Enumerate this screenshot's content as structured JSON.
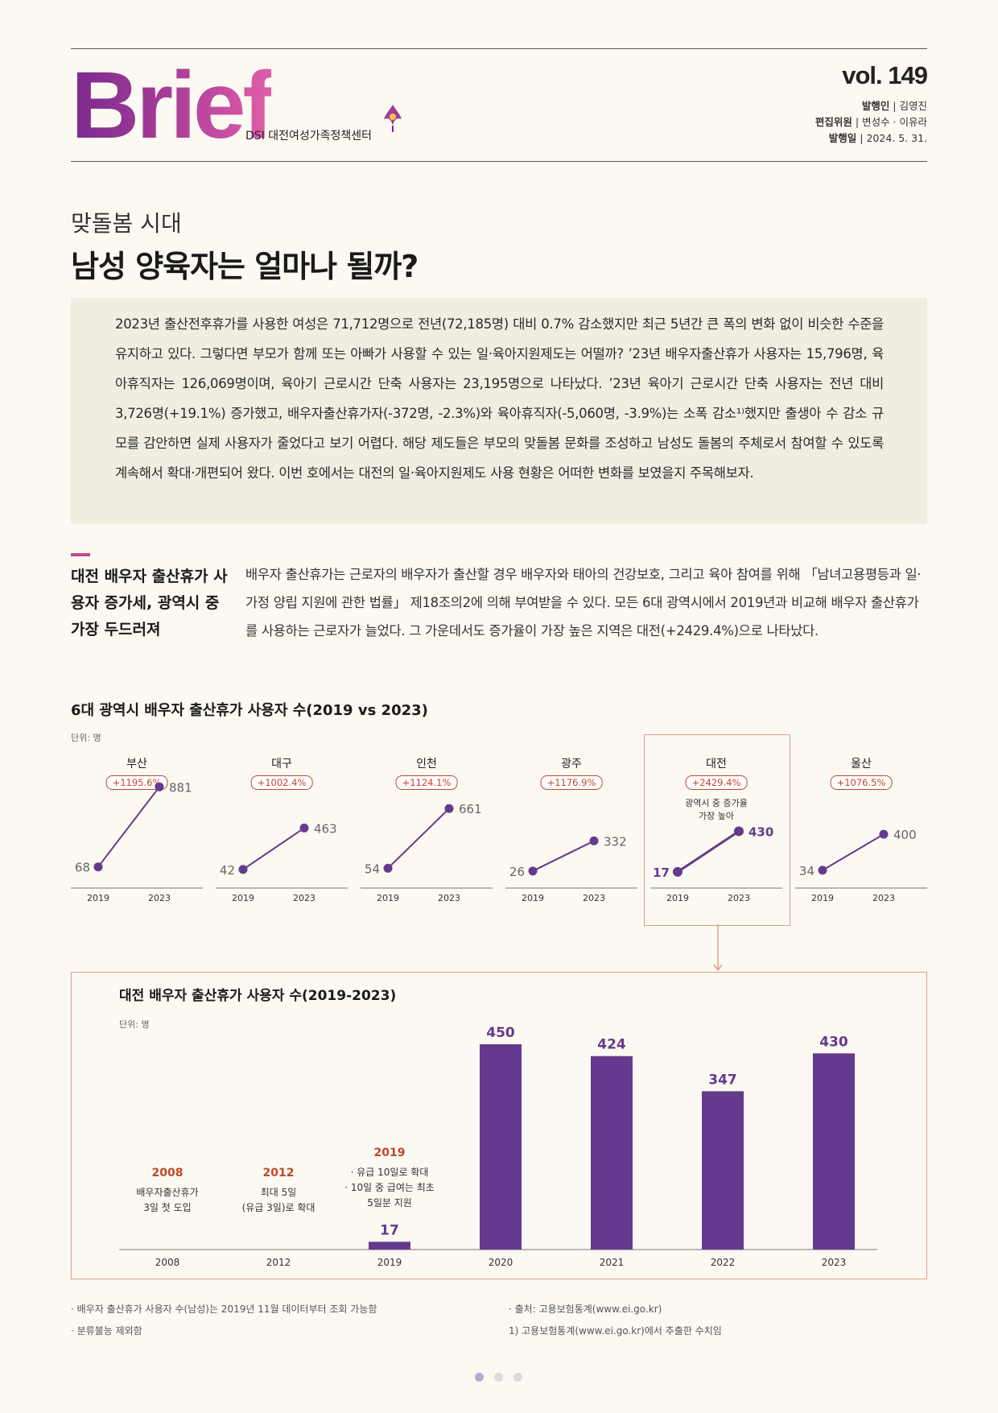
{
  "header": {
    "logo": "Brief",
    "org": "DSI 대전여성가족정책센터",
    "vol": "vol. 149",
    "publisher_label": "발행인",
    "publisher": " | 김영진",
    "editors_label": "편집위원",
    "editors": " | 변성수 · 이유라",
    "date_label": "발행일",
    "date": " | 2024. 5. 31."
  },
  "title": {
    "kicker": "맞돌봄 시대",
    "main": "남성 양육자는 얼마나 될까?"
  },
  "summary": "2023년 출산전후휴가를 사용한 여성은 71,712명으로 전년(72,185명) 대비 0.7% 감소했지만 최근 5년간 큰 폭의 변화 없이 비슷한 수준을 유지하고 있다. 그렇다면 부모가 함께 또는 아빠가 사용할 수 있는 일·육아지원제도는 어떨까? ’23년 배우자출산휴가 사용자는 15,796명, 육아휴직자는 126,069명이며, 육아기 근로시간 단축 사용자는 23,195명으로 나타났다. ’23년 육아기 근로시간 단축 사용자는 전년 대비 3,726명(+19.1%) 증가했고, 배우자출산휴가자(-372명, -2.3%)와 육아휴직자(-5,060명, -3.9%)는 소폭 감소¹⁾했지만 출생아 수 감소 규모를 감안하면 실제 사용자가 줄었다고 보기 어렵다. 해당 제도들은 부모의 맞돌봄 문화를 조성하고 남성도 돌봄의 주체로서 참여할 수 있도록 계속해서 확대·개편되어 왔다. 이번 호에서는 대전의 일·육아지원제도 사용 현황은 어떠한 변화를 보였을지 주목해보자.",
  "section": {
    "heading": "대전 배우자 출산휴가 사용자 증가세, 광역시 중 가장 두드러져",
    "body": "배우자 출산휴가는 근로자의 배우자가 출산할 경우 배우자와 태아의 건강보호, 그리고 육아 참여를 위해 「남녀고용평등과 일·가정 양립 지원에 관한 법률」 제18조의2에 의해 부여받을 수 있다. 모든 6대 광역시에서 2019년과 비교해 배우자 출산휴가를 사용하는 근로자가 늘었다. 그 가운데서도 증가율이 가장 높은 지역은 대전(+2429.4%)으로 나타났다."
  },
  "chart_data": [
    {
      "type": "line",
      "title": "6대 광역시 배우자 출산휴가 사용자 수(2019 vs 2023)",
      "unit": "단위: 명",
      "x": [
        "2019",
        "2023"
      ],
      "series": [
        {
          "name": "부산",
          "values": [
            68,
            881
          ],
          "change": "+1195.6%"
        },
        {
          "name": "대구",
          "values": [
            42,
            463
          ],
          "change": "+1002.4%"
        },
        {
          "name": "인천",
          "values": [
            54,
            661
          ],
          "change": "+1124.1%"
        },
        {
          "name": "광주",
          "values": [
            26,
            332
          ],
          "change": "+1176.9%"
        },
        {
          "name": "대전",
          "values": [
            17,
            430
          ],
          "change": "+2429.4%",
          "note": "광역시 중 증가율 가장 높아",
          "highlight": true
        },
        {
          "name": "울산",
          "values": [
            34,
            400
          ],
          "change": "+1076.5%"
        }
      ]
    },
    {
      "type": "bar",
      "title": "대전 배우자 출산휴가 사용자 수(2019-2023)",
      "unit": "단위: 명",
      "categories": [
        "2008",
        "2012",
        "2019",
        "2020",
        "2021",
        "2022",
        "2023"
      ],
      "values": [
        null,
        null,
        17,
        450,
        424,
        347,
        430
      ],
      "annotations": [
        {
          "category": "2008",
          "year": "2008",
          "lines": [
            "배우자출산휴가",
            "3일 첫 도입"
          ]
        },
        {
          "category": "2012",
          "year": "2012",
          "lines": [
            "최대 5일",
            "(유급 3일)로 확대"
          ]
        },
        {
          "category": "2019",
          "year": "2019",
          "lines": [
            "· 유급 10일로 확대",
            "· 10일 중 급여는 최초",
            "5일분 지원"
          ]
        }
      ]
    }
  ],
  "notes": {
    "left": [
      "· 배우자 출산휴가 사용자 수(남성)는 2019년 11월 데이터부터 조회 가능함",
      "· 분류불능 제외함"
    ],
    "right": [
      "· 출처: 고용보험통계(www.ei.go.kr)",
      "1) 고용보험통계(www.ei.go.kr)에서 추출한 수치임"
    ]
  },
  "pagination": {
    "pages": 3,
    "current": 1
  },
  "colors": {
    "accent": "#653a8e",
    "highlight": "#c0472a",
    "box_border": "#dba08c",
    "summary_bg": "#efeee1"
  }
}
